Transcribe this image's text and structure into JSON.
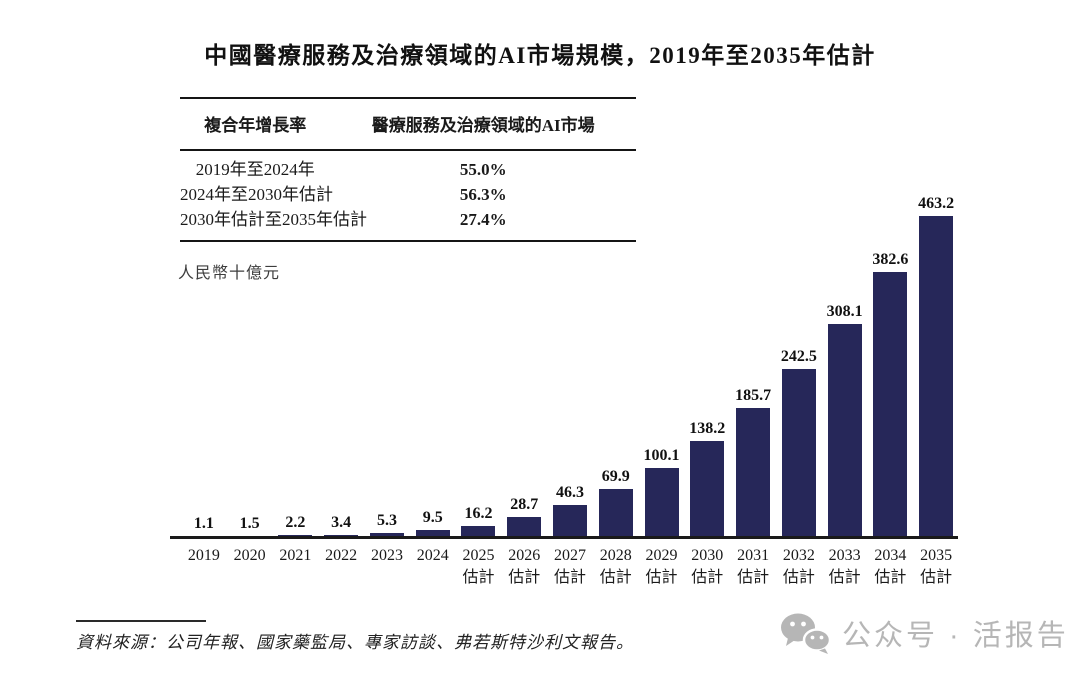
{
  "title": "中國醫療服務及治療領域的AI市場規模，2019年至2035年估計",
  "table": {
    "headers": [
      "複合年增長率",
      "醫療服務及治療領域的AI市場"
    ],
    "rows": [
      {
        "period": "2019年至2024年",
        "cagr": "55.0%"
      },
      {
        "period": "2024年至2030年估計",
        "cagr": "56.3%"
      },
      {
        "period": "2030年估計至2035年估計",
        "cagr": "27.4%"
      }
    ]
  },
  "chart_data": {
    "type": "bar",
    "title": "中國醫療服務及治療領域的AI市場規模，2019年至2035年估計",
    "unit": "人民幣十億元",
    "categories": [
      "2019",
      "2020",
      "2021",
      "2022",
      "2023",
      "2024",
      "2025",
      "2026",
      "2027",
      "2028",
      "2029",
      "2030",
      "2031",
      "2032",
      "2033",
      "2034",
      "2035"
    ],
    "estimate_suffix": "估計",
    "estimate_from_index": 6,
    "values": [
      1.1,
      1.5,
      2.2,
      3.4,
      5.3,
      9.5,
      16.2,
      28.7,
      46.3,
      69.9,
      100.1,
      138.2,
      185.7,
      242.5,
      308.1,
      382.6,
      463.2
    ],
    "value_labels_shown": true,
    "bar_color": "#262759",
    "axis_color": "#1a1a1a",
    "ylim": [
      0,
      480
    ],
    "grid": false,
    "legend": "none"
  },
  "source": "資料來源：公司年報、國家藥監局、專家訪談、弗若斯特沙利文報告。",
  "watermark": {
    "icon": "wechat-icon",
    "text": "公众号 · 活报告",
    "color": "#b6b6b6"
  }
}
